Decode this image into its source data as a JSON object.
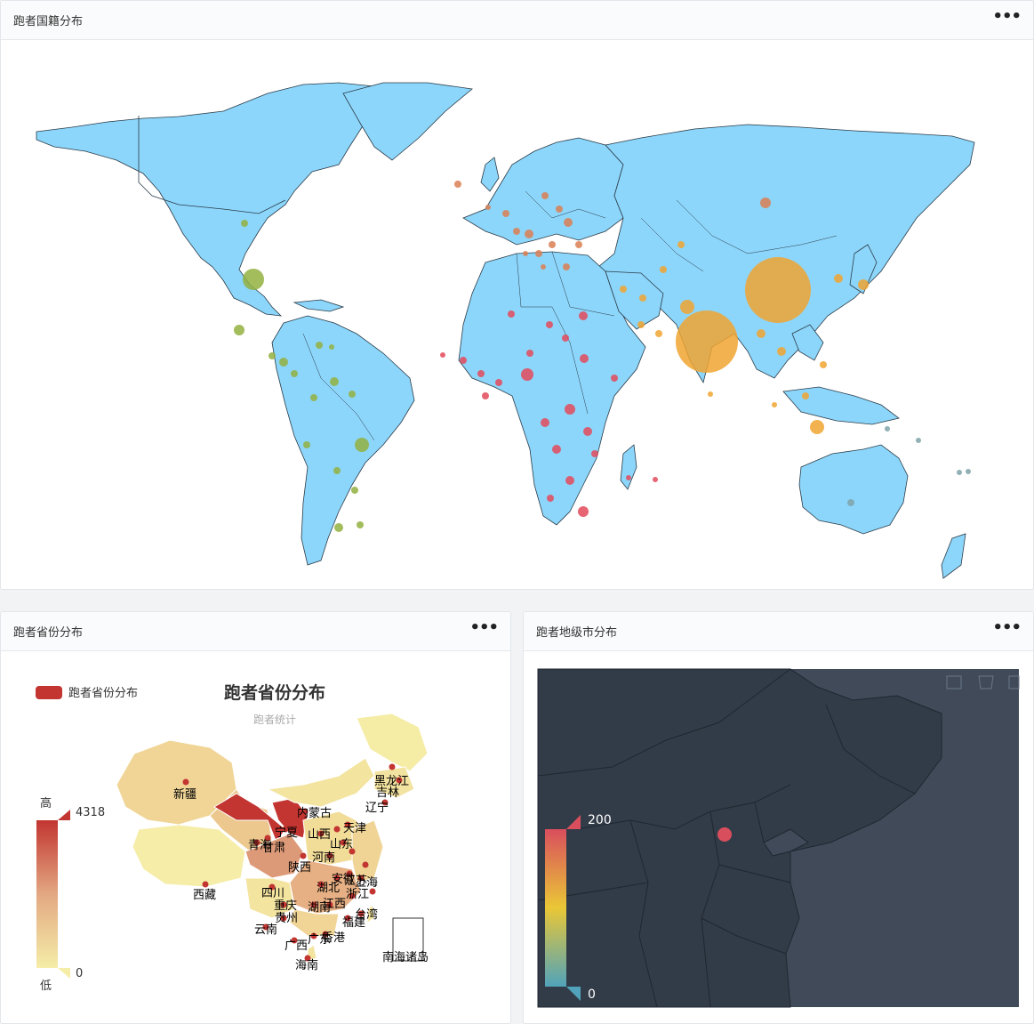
{
  "world_card": {
    "title": "跑者国籍分布",
    "menu": "•••"
  },
  "province_card": {
    "title": "跑者省份分布",
    "menu": "•••",
    "chart_title": "跑者省份分布",
    "chart_subtitle": "跑者统计",
    "legend_label": "跑者省份分布",
    "scale_high": "高",
    "scale_low": "低",
    "scale_max": "4318",
    "scale_min": "0",
    "labels": {
      "xinjiang": "新疆",
      "xizang": "西藏",
      "qinghai": "青海",
      "gansu": "甘肃",
      "ningxia": "宁夏",
      "neimenggu": "内蒙古",
      "heilongjiang": "黑龙江",
      "jilin": "吉林",
      "liaoning": "辽宁",
      "shanxi": "山西",
      "shaanxi": "陕西",
      "henan": "河南",
      "shandong": "山东",
      "tianjin": "天津",
      "sichuan": "四川",
      "chongqing": "重庆",
      "hubei": "湖北",
      "anhui": "安徽",
      "jiangsu": "江苏",
      "shanghai": "上海",
      "zhejiang": "浙江",
      "guizhou": "贵州",
      "hunan": "湖南",
      "jiangxi": "江西",
      "fujian": "福建",
      "taiwan": "台湾",
      "yunnan": "云南",
      "guangxi": "广西",
      "guangdong": "广东",
      "hongkong": "香港",
      "hainan": "海南",
      "nanhai": "南海诸岛"
    }
  },
  "city_card": {
    "title": "跑者地级市分布",
    "menu": "•••",
    "scale_max": "200",
    "scale_min": "0"
  },
  "colors": {
    "ocean": "#ffffff",
    "land_world": "#8dd6fb",
    "africa_dot": "#e34a5a",
    "europe_dot": "#db7f52",
    "asia_dot": "#f0a530",
    "americas_dot": "#93b040",
    "oceania_dot": "#7fa3a8",
    "prov_high": "#c23531",
    "prov_low": "#f5eda8",
    "city_bg": "#404a59",
    "city_land": "#323c48",
    "city_dot": "#d94e5d"
  }
}
